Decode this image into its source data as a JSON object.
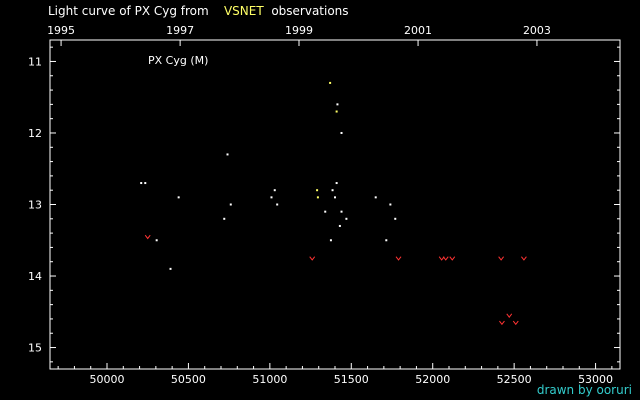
{
  "title": {
    "prefix": "Light curve of PX Cyg from",
    "highlight": "VSNET",
    "suffix": "observations"
  },
  "credit": "drawn by ooruri",
  "colors": {
    "background": "#000000",
    "axis": "#ffffff",
    "observation": "#ffffff",
    "highlight": "#ffff66",
    "upper_limit": "#ff3333",
    "credit": "#33cccc"
  },
  "chart_data": {
    "type": "scatter",
    "label": "PX Cyg (M)",
    "xlim": [
      49650,
      53150
    ],
    "ylim": [
      10.7,
      15.3
    ],
    "y_inverted": true,
    "x_ticks": [
      50000,
      50500,
      51000,
      51500,
      52000,
      52500,
      53000
    ],
    "y_ticks": [
      11,
      12,
      13,
      14,
      15
    ],
    "top_axis_years": [
      {
        "label": "1995",
        "x": 49718
      },
      {
        "label": "1997",
        "x": 50449
      },
      {
        "label": "1999",
        "x": 51179
      },
      {
        "label": "2001",
        "x": 51910
      },
      {
        "label": "2003",
        "x": 52640
      }
    ],
    "series": [
      {
        "kind": "observation",
        "color": "#ffffff",
        "points": [
          [
            50210,
            12.7
          ],
          [
            50235,
            12.7
          ],
          [
            50305,
            13.5
          ],
          [
            50440,
            12.9
          ],
          [
            50390,
            13.9
          ],
          [
            50720,
            13.2
          ],
          [
            50740,
            12.3
          ],
          [
            50760,
            13.0
          ],
          [
            51010,
            12.9
          ],
          [
            51030,
            12.8
          ],
          [
            51045,
            13.0
          ],
          [
            51340,
            13.1
          ],
          [
            51385,
            12.8
          ],
          [
            51400,
            12.9
          ],
          [
            51410,
            12.7
          ],
          [
            51375,
            13.5
          ],
          [
            51440,
            13.1
          ],
          [
            51430,
            13.3
          ],
          [
            51470,
            13.2
          ],
          [
            51415,
            11.6
          ],
          [
            51440,
            12.0
          ],
          [
            51650,
            12.9
          ],
          [
            51715,
            13.5
          ],
          [
            51740,
            13.0
          ],
          [
            51770,
            13.2
          ]
        ]
      },
      {
        "kind": "highlight",
        "color": "#ffff66",
        "points": [
          [
            51290,
            12.8
          ],
          [
            51295,
            12.9
          ],
          [
            51370,
            11.3
          ],
          [
            51410,
            11.7
          ]
        ]
      },
      {
        "kind": "upper_limit",
        "color": "#ff3333",
        "points": [
          [
            50250,
            13.45
          ],
          [
            51260,
            13.75
          ],
          [
            51790,
            13.75
          ],
          [
            52055,
            13.75
          ],
          [
            52080,
            13.75
          ],
          [
            52120,
            13.75
          ],
          [
            52420,
            13.75
          ],
          [
            52560,
            13.75
          ],
          [
            52470,
            14.55
          ],
          [
            52425,
            14.65
          ],
          [
            52510,
            14.65
          ]
        ]
      }
    ]
  }
}
